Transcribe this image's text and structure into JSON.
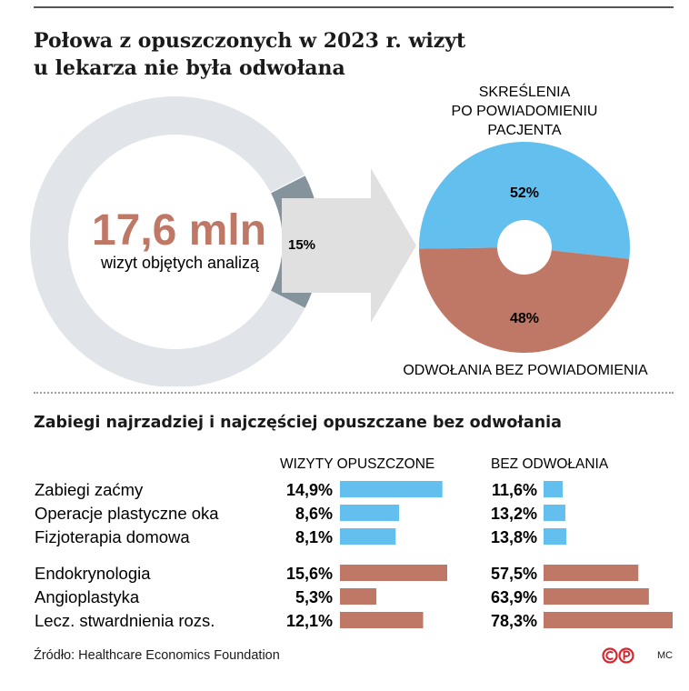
{
  "title": "Połowa z opuszczonych w 2023 r. wizyt u lekarza nie była odwołana",
  "source": "Źródło: Healthcare Economics Foundation",
  "credit": "MC",
  "colors": {
    "ring": "#e1e5e9",
    "slice": "#84939c",
    "arrow": "#e0e0e0",
    "blue": "#62bfee",
    "brown": "#c07866",
    "accent": "#c07866",
    "brand": "#d6262f"
  },
  "chart_data": [
    {
      "type": "pie",
      "title": "",
      "big_number": "17,6 mln",
      "big_number_caption": "wizyt objętych analizą",
      "slices": [
        {
          "label": "",
          "value": 85
        },
        {
          "label": "15%",
          "value": 15
        }
      ]
    },
    {
      "type": "pie",
      "donut": true,
      "slices": [
        {
          "label": "SKREŚLENIA PO POWIADOMIENIU PACJENTA",
          "value": 52,
          "value_label": "52%"
        },
        {
          "label": "ODWOŁANIA BEZ POWIADOMIENIA",
          "value": 48,
          "value_label": "48%"
        }
      ],
      "label_top_lines": [
        "SKREŚLENIA",
        "PO POWIADOMIENIU",
        "PACJENTA"
      ],
      "label_bottom": "ODWOŁANIA BEZ POWIADOMIENIA"
    },
    {
      "type": "bar",
      "orientation": "horizontal",
      "title": "Zabiegi najrzadziej i najczęściej opuszczane bez odwołania",
      "categories": [
        "Zabiegi zaćmy",
        "Operacje plastyczne oka",
        "Fizjoterapia domowa",
        "Endokrynologia",
        "Angioplastyka",
        "Lecz. stwardnienia rozs."
      ],
      "groups": [
        "blue",
        "blue",
        "blue",
        "brown",
        "brown",
        "brown"
      ],
      "series": [
        {
          "name": "WIZYTY OPUSZCZONE",
          "values": [
            14.9,
            8.6,
            8.1,
            15.6,
            5.3,
            12.1
          ],
          "labels": [
            "14,9%",
            "8,6%",
            "8,1%",
            "15,6%",
            "5,3%",
            "12,1%"
          ],
          "max": 15.6
        },
        {
          "name": "BEZ ODWOŁANIA",
          "values": [
            11.6,
            13.2,
            13.8,
            57.5,
            63.9,
            78.3
          ],
          "labels": [
            "11,6%",
            "13,2%",
            "13,8%",
            "57,5%",
            "63,9%",
            "78,3%"
          ],
          "max": 78.3
        }
      ]
    }
  ]
}
